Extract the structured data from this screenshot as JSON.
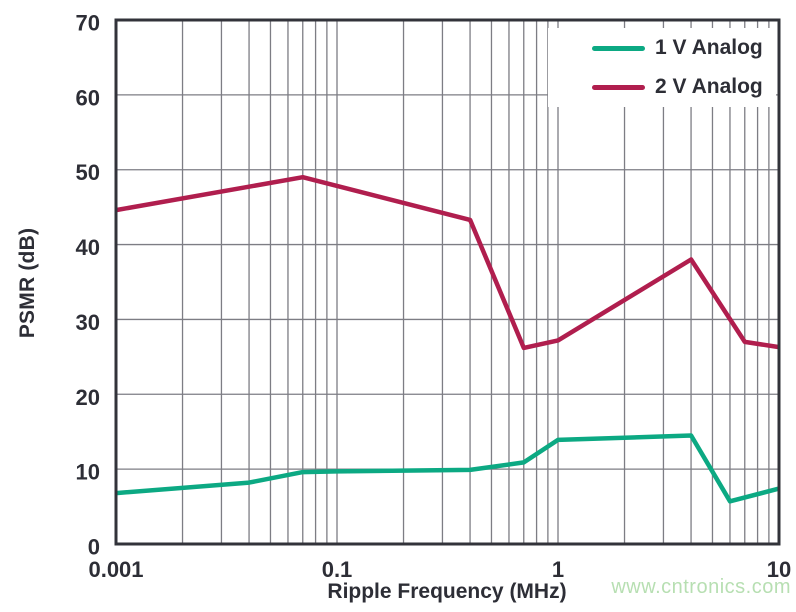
{
  "chart_data": {
    "type": "line",
    "title": "",
    "xlabel": "Ripple Frequency (MHz)",
    "ylabel": "PSMR (dB)",
    "x_scale": "log",
    "x_tick_labels": [
      "0.001",
      "0.1",
      "1",
      "10"
    ],
    "y_ticks": [
      0,
      10,
      20,
      30,
      40,
      50,
      60,
      70
    ],
    "ylim": [
      0,
      70
    ],
    "grid": "full log minor vertical gridlines, major horizontal gridlines",
    "legend_position": "top-right",
    "series": [
      {
        "name": "1 V Analog",
        "color": "#0ca983",
        "points": [
          [
            0.001,
            6.8
          ],
          [
            0.04,
            8.2
          ],
          [
            0.07,
            9.6
          ],
          [
            0.1,
            9.7
          ],
          [
            0.4,
            9.9
          ],
          [
            0.7,
            10.9
          ],
          [
            1,
            13.9
          ],
          [
            4,
            14.5
          ],
          [
            6,
            5.7
          ],
          [
            10,
            7.4
          ]
        ]
      },
      {
        "name": "2 V Analog",
        "color": "#b01e4e",
        "points": [
          [
            0.001,
            44.6
          ],
          [
            0.07,
            49.0
          ],
          [
            0.4,
            43.3
          ],
          [
            0.7,
            26.2
          ],
          [
            1,
            27.2
          ],
          [
            4,
            38.0
          ],
          [
            7,
            27.0
          ],
          [
            10,
            26.3
          ]
        ]
      }
    ]
  },
  "style": {
    "grid_color": "#7d7d84",
    "frame_color": "#32333a",
    "text_color": "#2d2e36",
    "line_width": 4.5
  },
  "watermark": {
    "text": "www.cntronics.com",
    "color": "#b7dfb2"
  }
}
